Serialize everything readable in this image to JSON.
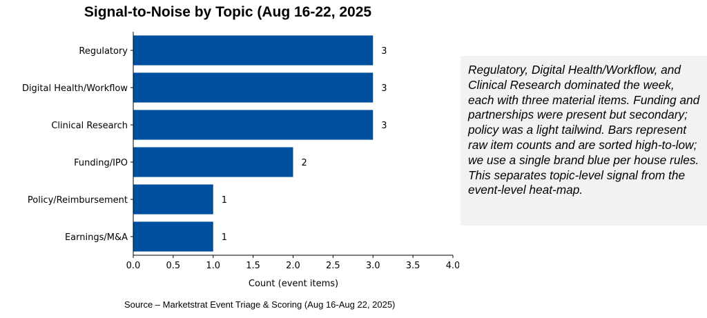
{
  "chart_data": {
    "type": "bar",
    "orientation": "horizontal",
    "title": "Signal-to-Noise by Topic (Aug 16-22, 2025",
    "xlabel": "Count (event items)",
    "ylabel": "",
    "categories": [
      "Regulatory",
      "Digital Health/Workflow",
      "Clinical Research",
      "Funding/IPO",
      "Policy/Reimbursement",
      "Earnings/M&A"
    ],
    "values": [
      3,
      3,
      3,
      2,
      1,
      1
    ],
    "data_labels": [
      "3",
      "3",
      "3",
      "2",
      "1",
      "1"
    ],
    "xlim": [
      0,
      4
    ],
    "x_ticks": [
      "0.0",
      "0.5",
      "1.0",
      "1.5",
      "2.0",
      "2.5",
      "3.0",
      "3.5",
      "4.0"
    ],
    "grid": false,
    "bar_color": "#0050a0"
  },
  "annotation": "Regulatory, Digital Health/Workflow, and Clinical Research dominated the week, each with three material items. Funding and partnerships were present but secondary; policy was a light tailwind. Bars represent raw item counts and are sorted high-to-low; we use a single brand blue per house rules. This separates topic-level signal from the event-level heat-map.",
  "source": "Source – Marketstrat Event Triage & Scoring (Aug 16-Aug 22, 2025)"
}
